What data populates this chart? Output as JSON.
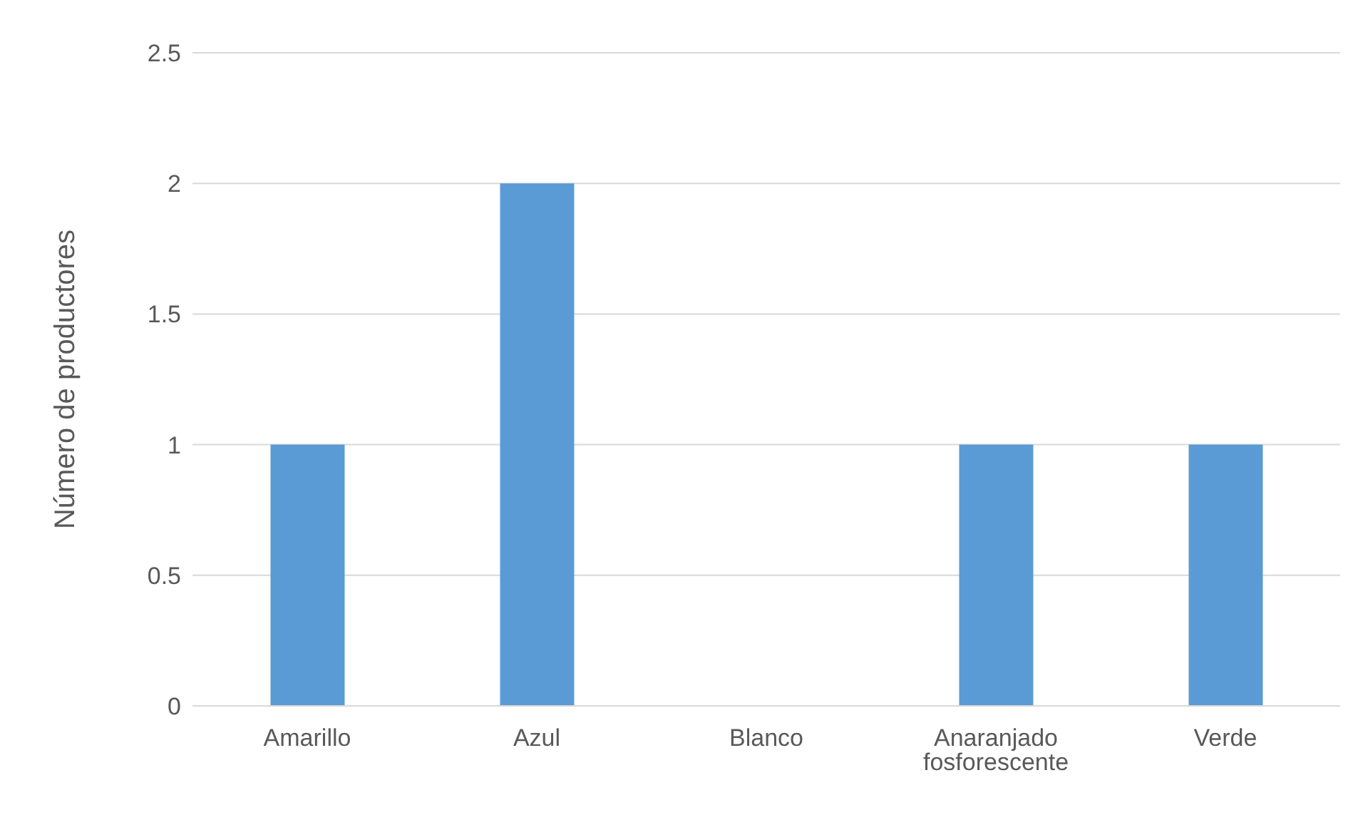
{
  "chart_data": {
    "type": "bar",
    "ylabel": "Número de productores",
    "categories": [
      "Amarillo",
      "Azul",
      "Blanco",
      "Anaranjado fosforescente",
      "Verde"
    ],
    "values": [
      1,
      2,
      0,
      1,
      1
    ],
    "color": "#5b9bd5",
    "ylim": [
      0,
      2.5
    ],
    "yticks": [
      0,
      0.5,
      1,
      1.5,
      2,
      2.5
    ],
    "grid": "y",
    "legend": false
  }
}
